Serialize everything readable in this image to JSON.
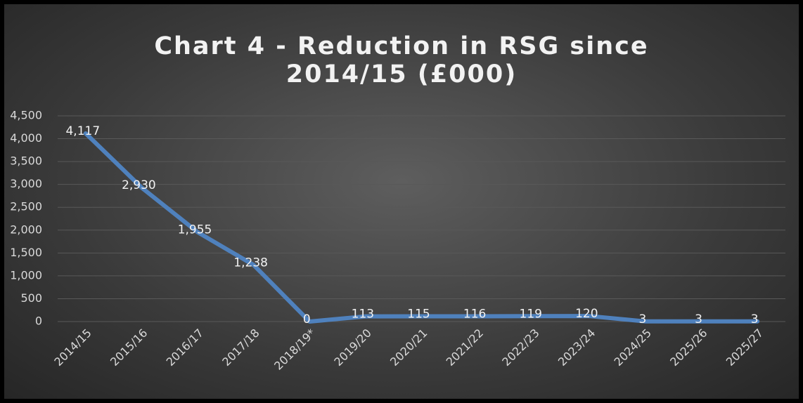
{
  "chart_data": {
    "type": "line",
    "title": "Chart 4 - Reduction in RSG since 2014/15 (£000)",
    "categories": [
      "2014/15",
      "2015/16",
      "2016/17",
      "2017/18",
      "2018/19*",
      "2019/20",
      "2020/21",
      "2021/22",
      "2022/23",
      "2023/24",
      "2024/25",
      "2025/26",
      "2025/27"
    ],
    "series": [
      {
        "name": "Reduction in RSG",
        "color": "#4f81bd",
        "values": [
          4117,
          2930,
          1955,
          1238,
          0,
          113,
          115,
          116,
          119,
          120,
          3,
          3,
          3
        ],
        "value_labels": [
          "4,117",
          "2,930",
          "1,955",
          "1,238",
          "0",
          "113",
          "115",
          "116",
          "119",
          "120",
          "3",
          "3",
          "3"
        ]
      }
    ],
    "ylim": [
      0,
      4500
    ],
    "yticks": [
      0,
      500,
      {
        "value": 1000,
        "label": "1,000"
      },
      {
        "value": 1500,
        "label": "1,500"
      },
      {
        "value": 2000,
        "label": "2,000"
      },
      {
        "value": 2500,
        "label": "2,500"
      },
      {
        "value": 3000,
        "label": "3,000"
      },
      {
        "value": 3500,
        "label": "3,500"
      },
      {
        "value": 4000,
        "label": "4,000"
      },
      {
        "value": 4500,
        "label": "4,500"
      }
    ],
    "grid": true
  }
}
